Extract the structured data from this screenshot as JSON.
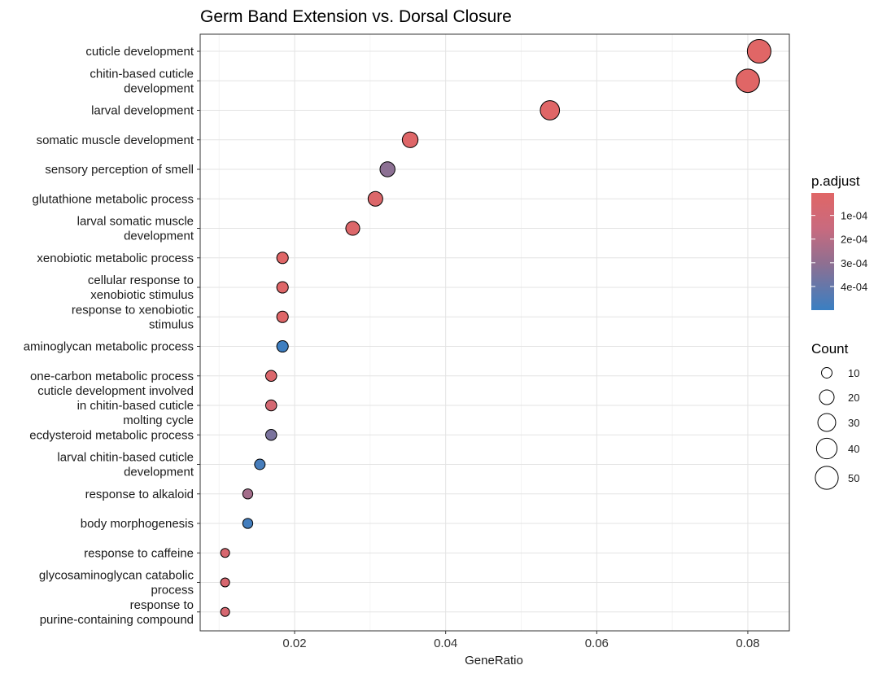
{
  "chart_data": {
    "type": "scatter",
    "title": "Germ Band Extension vs. Dorsal Closure",
    "xlabel": "GeneRatio",
    "ylabel": "",
    "xlim": [
      0.0075,
      0.0855
    ],
    "xticks": [
      0.02,
      0.04,
      0.06,
      0.08
    ],
    "xtick_labels": [
      "0.02",
      "0.04",
      "0.06",
      "0.08"
    ],
    "grid": true,
    "categories": [
      [
        "cuticle development"
      ],
      [
        "chitin-based cuticle",
        "development"
      ],
      [
        "larval development"
      ],
      [
        "somatic muscle development"
      ],
      [
        "sensory perception of smell"
      ],
      [
        "glutathione metabolic process"
      ],
      [
        "larval somatic muscle",
        "development"
      ],
      [
        "xenobiotic metabolic process"
      ],
      [
        "cellular response to",
        "xenobiotic stimulus"
      ],
      [
        "response to xenobiotic",
        "stimulus"
      ],
      [
        "aminoglycan metabolic process"
      ],
      [
        "one-carbon metabolic process"
      ],
      [
        "cuticle development involved",
        "in chitin-based cuticle",
        "molting cycle"
      ],
      [
        "ecdysteroid metabolic process"
      ],
      [
        "larval chitin-based cuticle",
        "development"
      ],
      [
        "response to alkaloid"
      ],
      [
        "body morphogenesis"
      ],
      [
        "response to caffeine"
      ],
      [
        "glycosaminoglycan catabolic",
        "process"
      ],
      [
        "response to",
        "purine-containing compound"
      ]
    ],
    "gene_ratio": [
      0.0815,
      0.08,
      0.0538,
      0.0353,
      0.0323,
      0.0307,
      0.0277,
      0.0184,
      0.0184,
      0.0184,
      0.0184,
      0.0169,
      0.0169,
      0.0169,
      0.0154,
      0.0138,
      0.0138,
      0.0108,
      0.0108,
      0.0108
    ],
    "count": [
      53,
      52,
      35,
      23,
      21,
      20,
      18,
      12,
      12,
      12,
      12,
      11,
      11,
      11,
      10,
      9,
      9,
      7,
      7,
      7
    ],
    "p_adjust": [
      5e-06,
      6e-06,
      1e-05,
      2e-05,
      0.00031,
      3e-05,
      3e-05,
      1e-05,
      2e-05,
      2e-05,
      0.00049,
      4e-05,
      8e-05,
      0.00035,
      0.00047,
      0.00025,
      0.00048,
      6e-05,
      6e-05,
      7e-05
    ],
    "color_scale": {
      "title": "p.adjust",
      "low_color": "#E06666",
      "high_color": "#3A7FC2",
      "range": [
        5e-06,
        0.0005
      ],
      "ticks": [
        0.0001,
        0.0002,
        0.0003,
        0.0004
      ],
      "tick_labels": [
        "1e-04",
        "2e-04",
        "3e-04",
        "4e-04"
      ]
    },
    "size_scale": {
      "title": "Count",
      "values": [
        10,
        20,
        30,
        40,
        50
      ],
      "labels": [
        "10",
        "20",
        "30",
        "40",
        "50"
      ]
    },
    "legend_position": "right"
  }
}
